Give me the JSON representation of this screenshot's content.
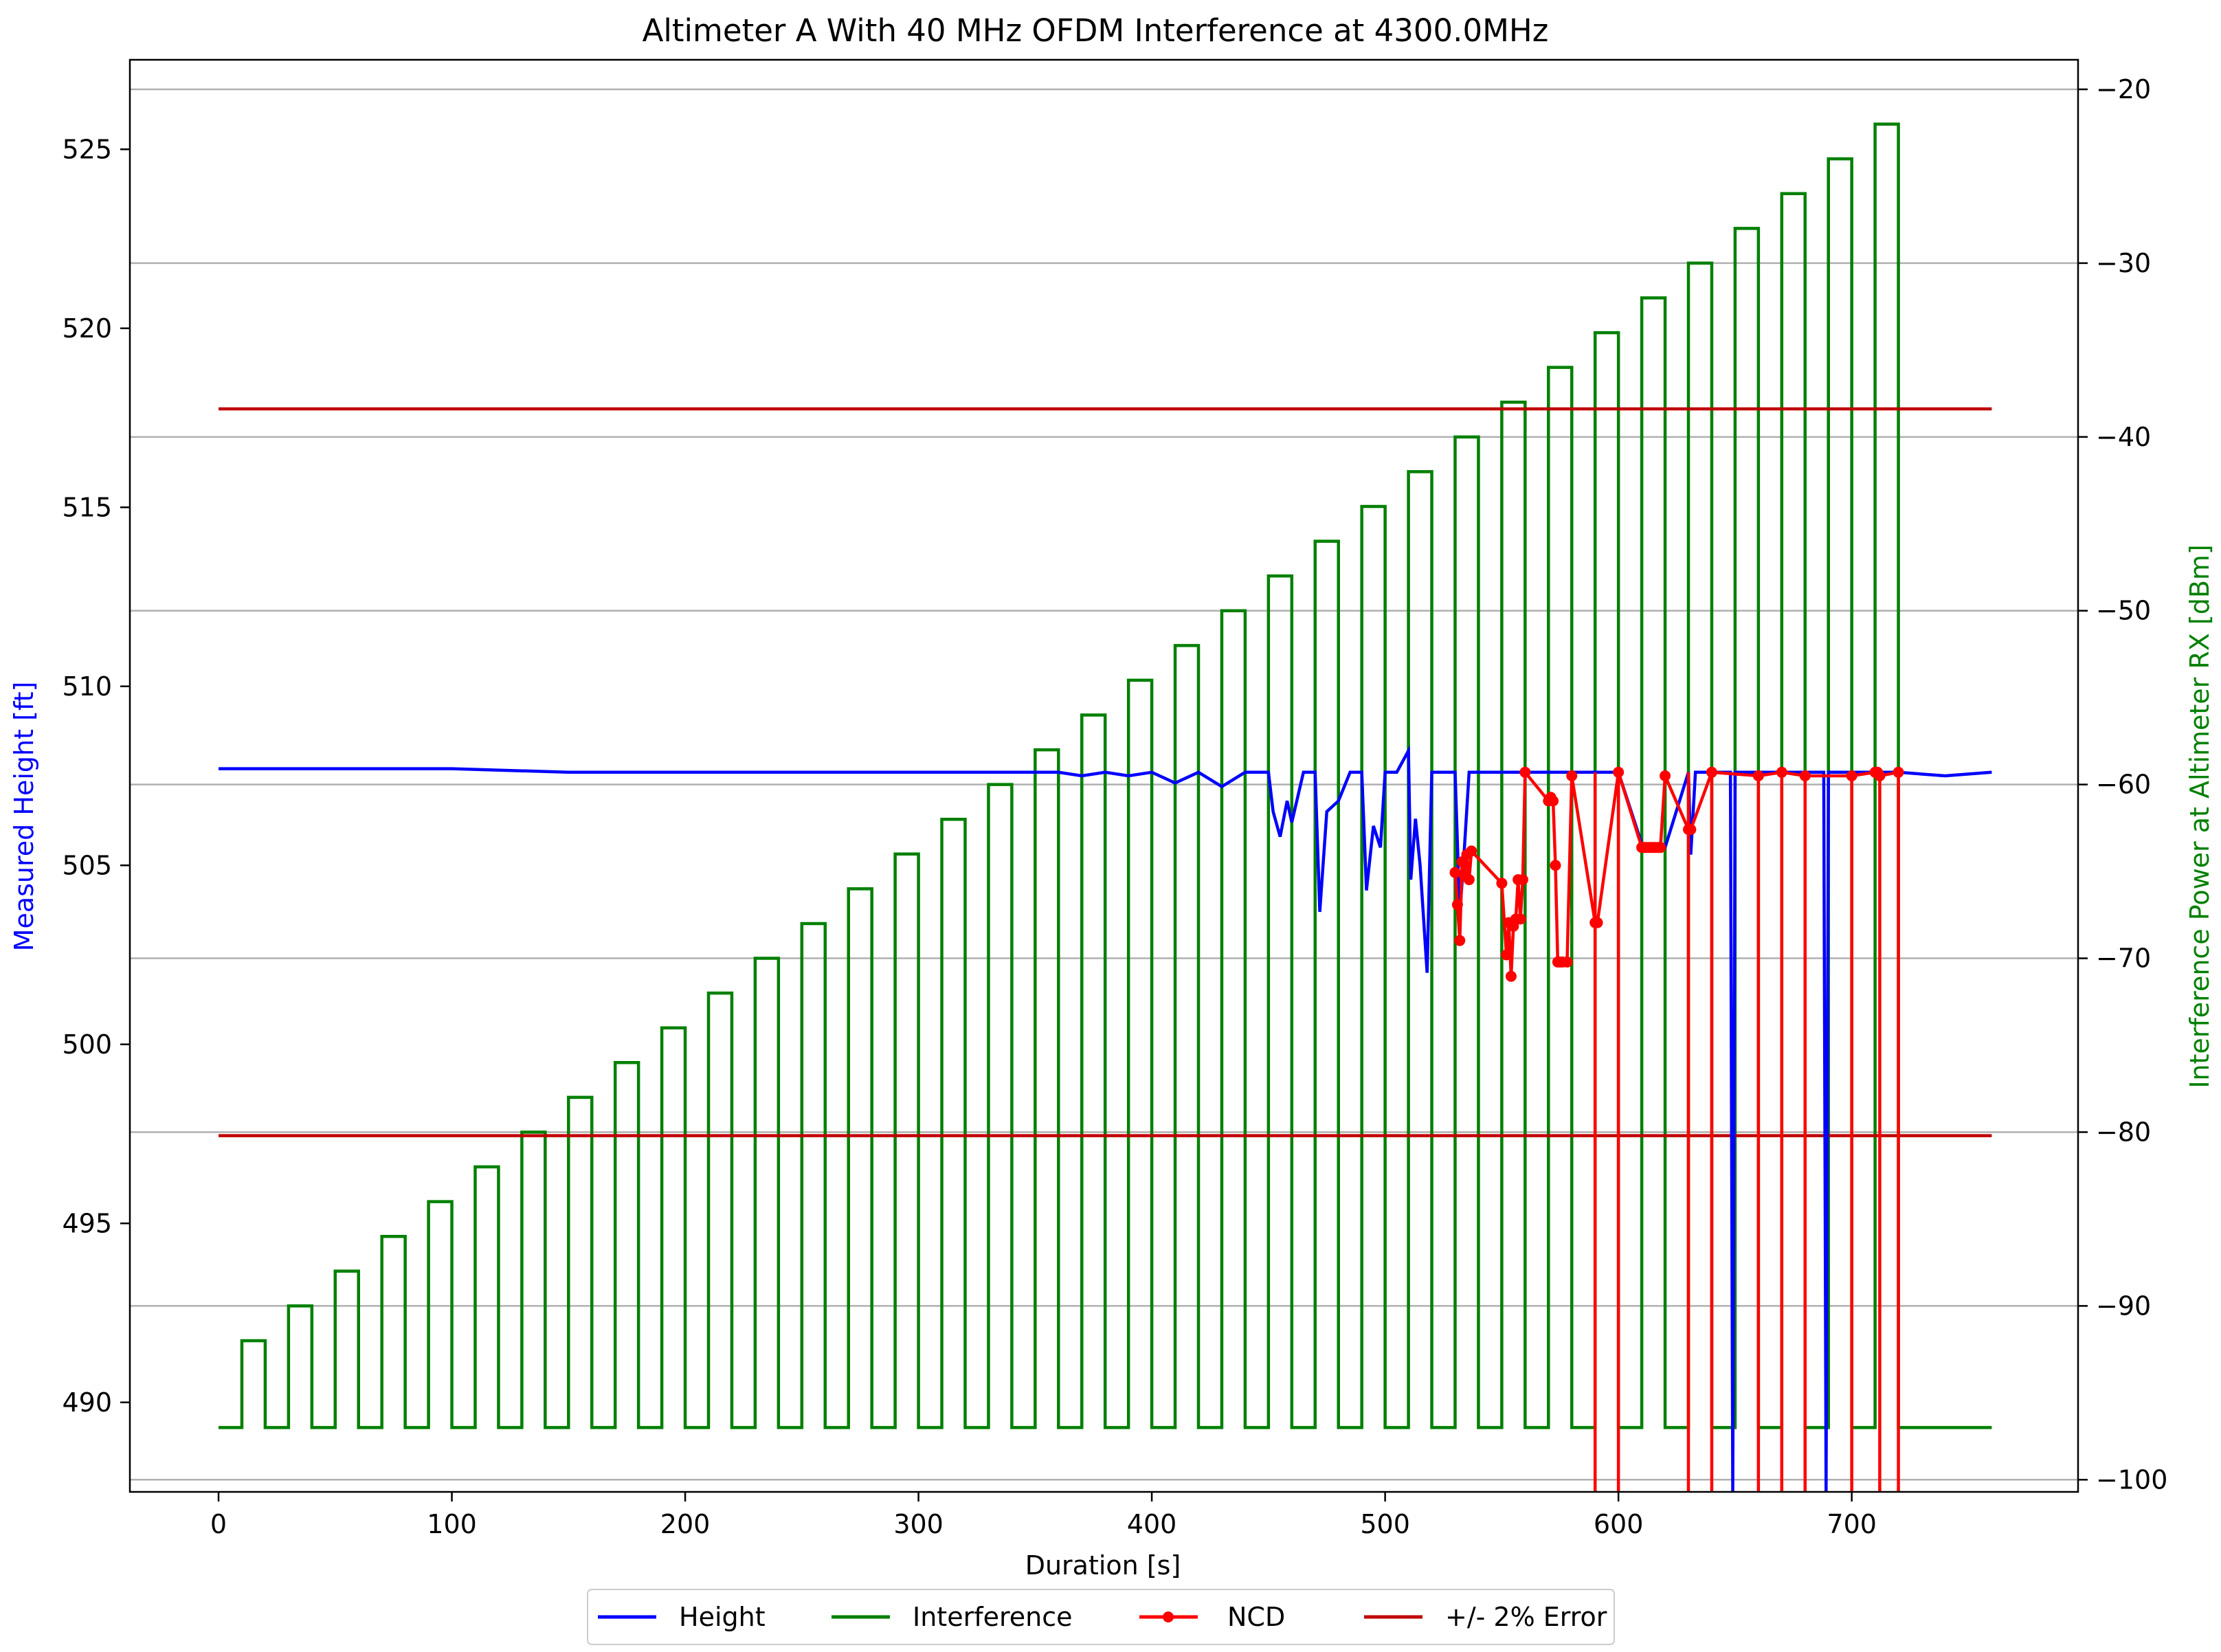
{
  "chart_data": {
    "type": "line",
    "title": "Altimeter A  With 40 MHz OFDM Interference at 4300.0MHz",
    "xlabel": "Duration [s]",
    "ylabel": "Measured Height [ft]",
    "y2label": "Interference Power at Altimeter RX [dBm]",
    "xlim": [
      -38,
      797
    ],
    "ylim": [
      487.5,
      527.5
    ],
    "y2lim": [
      -100.7,
      -18.3
    ],
    "xticks": [
      0,
      100,
      200,
      300,
      400,
      500,
      600,
      700
    ],
    "yticks": [
      490,
      495,
      500,
      505,
      510,
      515,
      520,
      525
    ],
    "y2ticks": [
      -20,
      -30,
      -40,
      -50,
      -60,
      -70,
      -80,
      -90,
      -100
    ],
    "grid": "horizontal, right axis",
    "legend_position": "bottom-center",
    "colors": {
      "height": "#0000ff",
      "interference": "#008000",
      "ncd": "#ff0000",
      "error": "#c00000",
      "grid": "#b0b0b0"
    },
    "series": [
      {
        "name": "Height",
        "axis": "left",
        "x": [
          0,
          50,
          100,
          150,
          200,
          250,
          300,
          350,
          360,
          370,
          380,
          390,
          400,
          410,
          420,
          430,
          440,
          450,
          452,
          455,
          458,
          460,
          465,
          470,
          472,
          475,
          480,
          485,
          490,
          492,
          495,
          498,
          500,
          505,
          510,
          511,
          513,
          515,
          518,
          520,
          525,
          530,
          532,
          534,
          536,
          538,
          545,
          550,
          555,
          600,
          610,
          620,
          630,
          631,
          633,
          640,
          648,
          649,
          650,
          680,
          688,
          689,
          690,
          700,
          720,
          740,
          760
        ],
        "values": [
          507.7,
          507.7,
          507.7,
          507.6,
          507.6,
          507.6,
          507.6,
          507.6,
          507.6,
          507.5,
          507.6,
          507.5,
          507.6,
          507.3,
          507.6,
          507.2,
          507.6,
          507.6,
          506.5,
          505.8,
          506.8,
          506.2,
          507.6,
          507.6,
          503.7,
          506.5,
          506.8,
          507.6,
          507.6,
          504.3,
          506.1,
          505.5,
          507.6,
          507.6,
          508.2,
          504.6,
          506.3,
          505.0,
          502.0,
          507.6,
          507.6,
          507.6,
          503.6,
          505.5,
          507.6,
          507.6,
          507.6,
          507.6,
          507.6,
          507.6,
          505.6,
          505.5,
          507.6,
          505.3,
          507.6,
          507.6,
          507.6,
          487.5,
          507.6,
          507.6,
          507.6,
          487.5,
          507.6,
          507.6,
          507.6,
          507.5,
          507.6
        ]
      },
      {
        "name": "Interference",
        "axis": "right",
        "on_levels_dBm": [
          -92,
          -90,
          -88,
          -86,
          -84,
          -82,
          -80,
          -78,
          -76,
          -74,
          -72,
          -70,
          -68,
          -66,
          -64,
          -62,
          -60,
          -58,
          -56,
          -54,
          -52,
          -50,
          -48,
          -46,
          -44,
          -42,
          -40,
          -38,
          -36,
          -34,
          -32,
          -30,
          -28,
          -26,
          -24,
          -22
        ],
        "off_level_dBm": -97,
        "pulse_start_s": 10,
        "pulse_period_s": 20,
        "pulse_width_s": 10,
        "end_s": 760
      },
      {
        "name": "NCD",
        "axis": "left",
        "x": [
          530,
          531,
          532,
          533,
          534,
          535,
          536,
          537,
          550,
          552,
          553,
          554,
          555,
          556,
          557,
          558,
          559,
          560,
          570,
          571,
          572,
          573,
          574,
          575,
          576,
          578,
          580,
          590,
          591,
          600,
          610,
          611,
          612,
          613,
          614,
          615,
          616,
          617,
          618,
          620,
          630,
          631,
          640,
          660,
          670,
          680,
          700,
          710,
          711,
          712,
          720
        ],
        "values": [
          504.8,
          503.9,
          502.9,
          505.1,
          504.7,
          505.3,
          504.6,
          505.4,
          504.5,
          502.5,
          503.4,
          501.9,
          503.3,
          503.5,
          504.6,
          503.5,
          504.6,
          507.6,
          506.8,
          506.9,
          506.8,
          505.0,
          502.3,
          502.3,
          502.3,
          502.3,
          507.5,
          503.4,
          503.4,
          507.6,
          505.5,
          505.5,
          505.5,
          505.5,
          505.5,
          505.5,
          505.5,
          505.5,
          505.5,
          507.5,
          506.0,
          506.0,
          507.6,
          507.5,
          507.6,
          507.5,
          507.5,
          507.6,
          507.6,
          507.5,
          507.6
        ],
        "drop_to_axis_x": [
          590,
          600,
          630,
          640,
          660,
          670,
          680,
          700,
          712,
          720
        ]
      },
      {
        "name": "+/- 2% Error",
        "axis": "left",
        "upper": 517.75,
        "lower": 497.45,
        "x": [
          0,
          760
        ]
      }
    ]
  }
}
